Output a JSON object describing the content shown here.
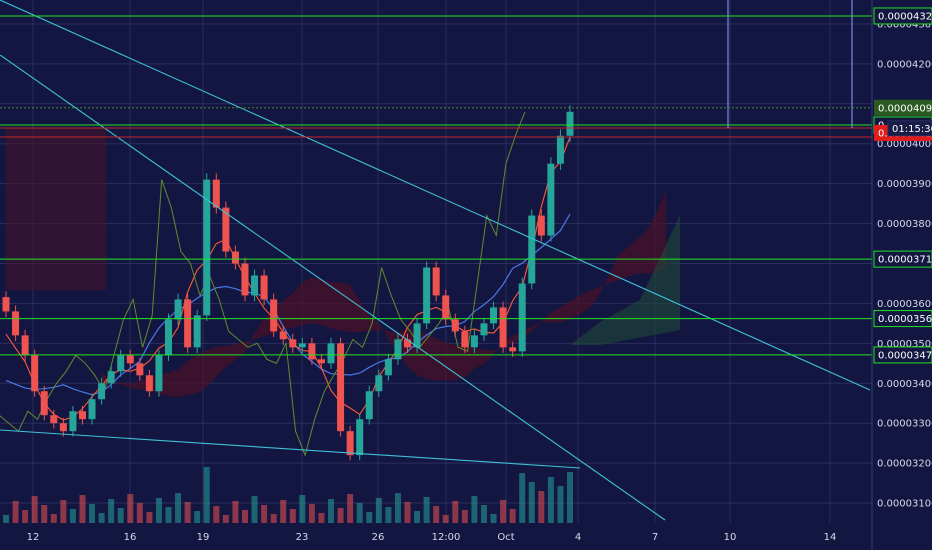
{
  "colors": {
    "background": "#131640",
    "grid": "#2b2f5e",
    "up": "#26a69a",
    "down": "#ef5350",
    "trendline": "#3fc1d6",
    "support": "#22e322",
    "resistance_red": "#c62828",
    "tenkan": "#ff5a36",
    "kijun": "#4a78e8",
    "chikou": "#5f8d2e",
    "cloud_bull": "#1f4a3a",
    "cloud_bear": "#4a1228",
    "axis_text": "#d8d9e8"
  },
  "chart_data": {
    "type": "candlestick",
    "title": "",
    "xlabel": "",
    "ylabel": "",
    "ylim": [
      3.05e-05,
      4.36e-05
    ],
    "y_ticks": [
      "0.00004300",
      "0.00004200",
      "0.00004100",
      "0.00004000",
      "0.00003900",
      "0.00003800",
      "0.00003700",
      "0.00003600",
      "0.00003500",
      "0.00003400",
      "0.00003300",
      "0.00003200",
      "0.00003100"
    ],
    "x_ticks": [
      "12",
      "16",
      "19",
      "23",
      "26",
      "12:00",
      "Oct",
      "4",
      "7",
      "10",
      "14"
    ],
    "horizontal_levels": [
      {
        "label": "0.00004320",
        "value": 4.32e-05,
        "color": "#22e322"
      },
      {
        "label": "0.00004090",
        "value": 4.09e-05,
        "color": "#4a8a2a"
      },
      {
        "label": "0.00004047",
        "value": 4.047e-05,
        "color": "#22e322"
      },
      {
        "label": "0.00003711",
        "value": 3.711e-05,
        "color": "#22e322"
      },
      {
        "label": "0.00003562",
        "value": 3.562e-05,
        "color": "#22e322"
      },
      {
        "label": "0.00003471",
        "value": 3.471e-05,
        "color": "#22e322"
      }
    ],
    "current_price": {
      "label": "0.00004027",
      "value": 4.027e-05,
      "color": "#e21b1b"
    },
    "countdown": {
      "label": "01:15:36"
    },
    "series": [
      {
        "name": "price",
        "values": [
          3.58e-05,
          3.52e-05,
          3.47e-05,
          3.38e-05,
          3.32e-05,
          3.3e-05,
          3.28e-05,
          3.33e-05,
          3.31e-05,
          3.36e-05,
          3.4e-05,
          3.43e-05,
          3.47e-05,
          3.45e-05,
          3.42e-05,
          3.38e-05,
          3.47e-05,
          3.56e-05,
          3.61e-05,
          3.49e-05,
          3.57e-05,
          3.91e-05,
          3.84e-05,
          3.73e-05,
          3.7e-05,
          3.62e-05,
          3.67e-05,
          3.61e-05,
          3.53e-05,
          3.51e-05,
          3.49e-05,
          3.5e-05,
          3.46e-05,
          3.45e-05,
          3.5e-05,
          3.28e-05,
          3.22e-05,
          3.31e-05,
          3.38e-05,
          3.42e-05,
          3.46e-05,
          3.51e-05,
          3.49e-05,
          3.55e-05,
          3.69e-05,
          3.62e-05,
          3.56e-05,
          3.53e-05,
          3.49e-05,
          3.52e-05,
          3.55e-05,
          3.59e-05,
          3.49e-05,
          3.48e-05,
          3.65e-05,
          3.82e-05,
          3.77e-05,
          3.95e-05,
          4.02e-05,
          4.08e-05
        ]
      }
    ]
  }
}
